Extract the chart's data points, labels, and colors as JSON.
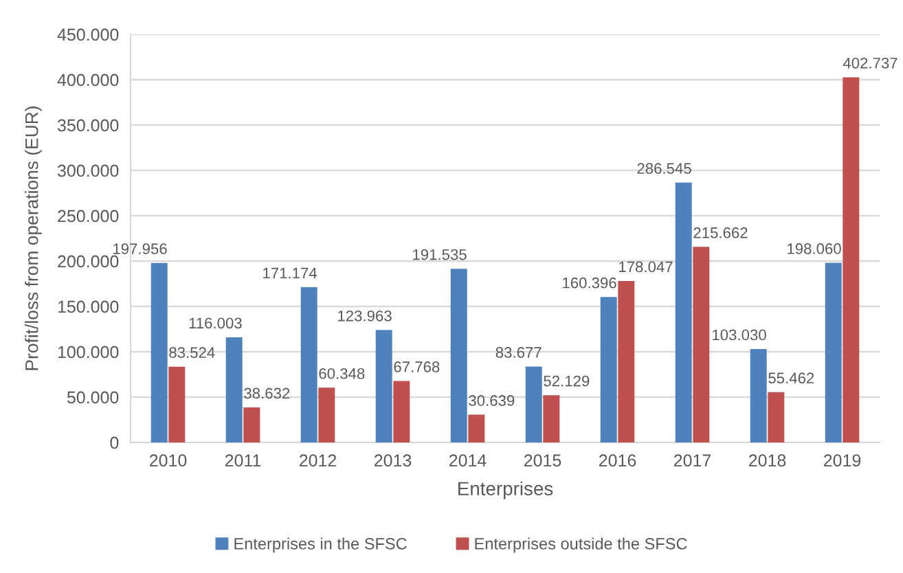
{
  "chart_data": {
    "type": "bar",
    "xlabel": "Enterprises",
    "ylabel": "Profit/loss from operations (EUR)",
    "categories": [
      "2010",
      "2011",
      "2012",
      "2013",
      "2014",
      "2015",
      "2016",
      "2017",
      "2018",
      "2019"
    ],
    "series": [
      {
        "name": "Enterprises in the SFSC",
        "color": "#4f81bd",
        "values": [
          197956,
          116003,
          171174,
          123963,
          191535,
          83677,
          160396,
          286545,
          103030,
          198060
        ],
        "value_labels": [
          "197.956",
          "116.003",
          "171.174",
          "123.963",
          "191.535",
          "83.677",
          "160.396",
          "286.545",
          "103.030",
          "198.060"
        ]
      },
      {
        "name": "Enterprises outside the SFSC",
        "color": "#c0504d",
        "values": [
          83524,
          38632,
          60348,
          67768,
          30639,
          52129,
          178047,
          215662,
          55462,
          402737
        ],
        "value_labels": [
          "83.524",
          "38.632",
          "60.348",
          "67.768",
          "30.639",
          "52.129",
          "178.047",
          "215.662",
          "55.462",
          "402.737"
        ]
      }
    ],
    "ylim": [
      0,
      450000
    ],
    "yticks": [
      0,
      {
        "value": 50000,
        "label": "50.000"
      },
      {
        "value": 100000,
        "label": "100.000"
      },
      {
        "value": 150000,
        "label": "150.000"
      },
      {
        "value": 200000,
        "label": "200.000"
      },
      {
        "value": 250000,
        "label": "250.000"
      },
      {
        "value": 300000,
        "label": "300.000"
      },
      {
        "value": 350000,
        "label": "350.000"
      },
      {
        "value": 400000,
        "label": "400.000"
      },
      {
        "value": 450000,
        "label": "450.000"
      }
    ],
    "grid": "y",
    "legend": "bottom"
  }
}
